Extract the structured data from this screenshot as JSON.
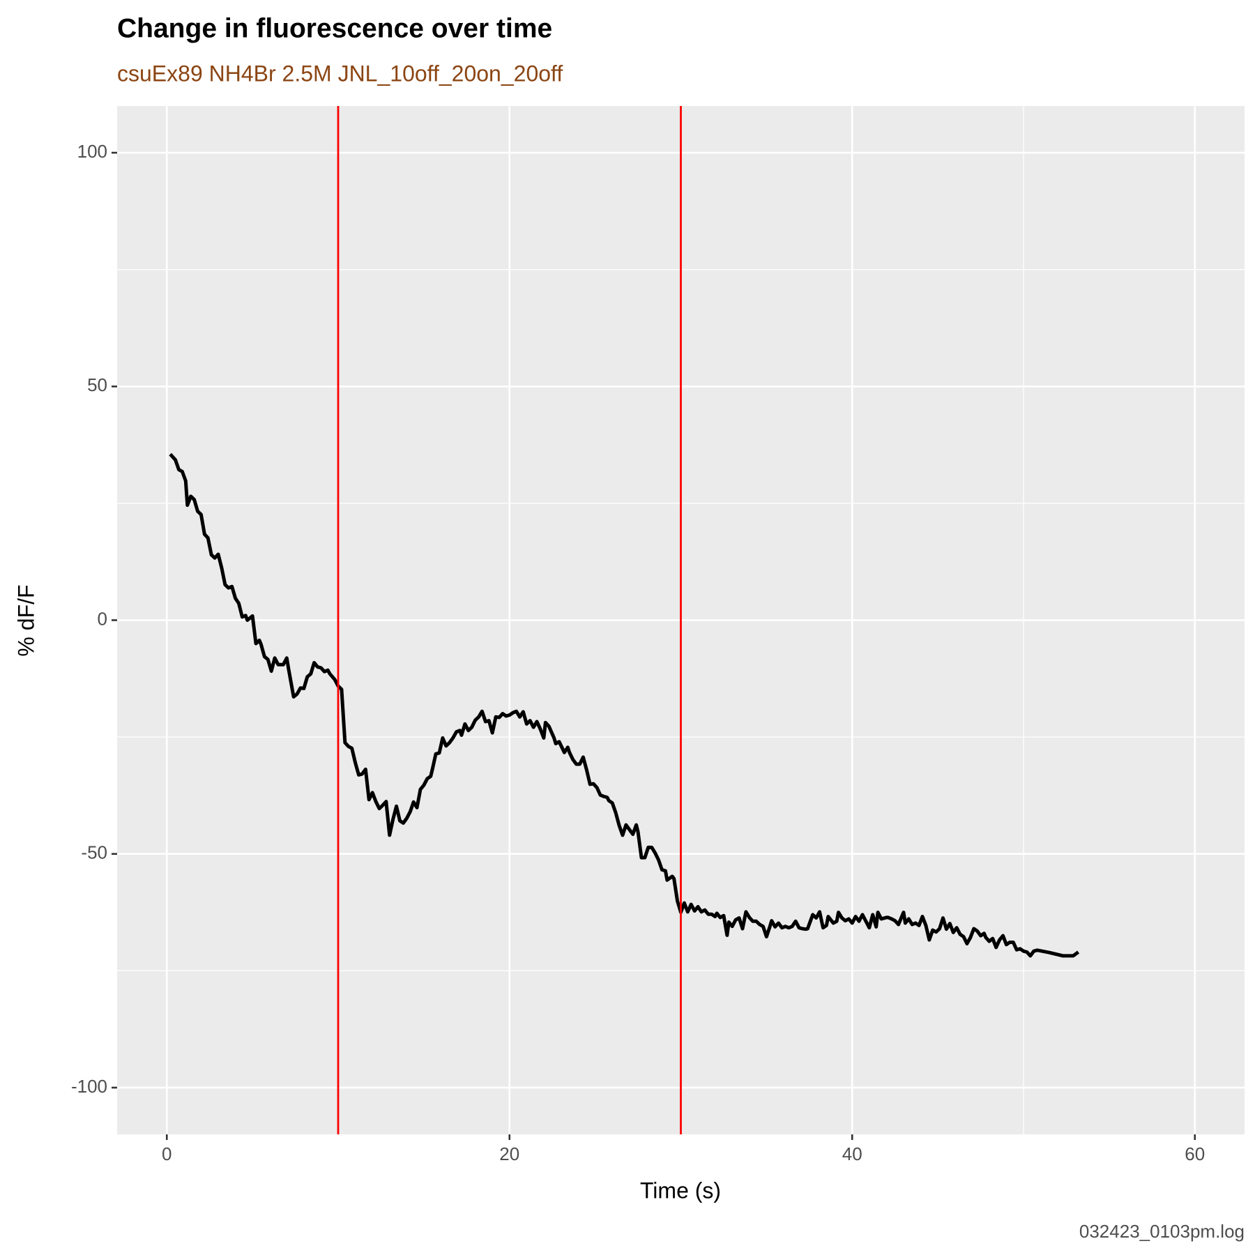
{
  "chart_data": {
    "type": "line",
    "title": "Change in fluorescence over time",
    "subtitle": "csuEx89 NH4Br 2.5M JNL_10off_20on_20off",
    "x_label": "Time (s)",
    "y_label": "% dF/F",
    "caption": "032423_0103pm.log",
    "xlim": [
      -2.9,
      62.9
    ],
    "ylim": [
      -110,
      110
    ],
    "xticks": [
      0,
      20,
      40,
      60
    ],
    "yticks": [
      -100,
      -50,
      0,
      50,
      100
    ],
    "grid": true,
    "vlines": [
      10,
      30
    ],
    "vline_color": "#ff0000",
    "x": [
      0.2,
      0.5,
      0.7,
      0.9,
      1.1,
      1.2,
      1.4,
      1.6,
      1.8,
      2.0,
      2.2,
      2.4,
      2.6,
      2.8,
      3.0,
      3.2,
      3.4,
      3.6,
      3.8,
      4.0,
      4.2,
      4.4,
      4.6,
      4.7,
      5.0,
      5.2,
      5.4,
      5.5,
      5.7,
      5.9,
      6.1,
      6.3,
      6.5,
      6.8,
      7.0,
      7.1,
      7.4,
      7.6,
      7.8,
      8.0,
      8.2,
      8.4,
      8.6,
      8.8,
      9.0,
      9.2,
      9.4,
      9.5,
      9.8,
      10.0,
      10.2,
      10.4,
      10.6,
      10.8,
      11.0,
      11.2,
      11.4,
      11.6,
      11.8,
      12.0,
      12.2,
      12.4,
      12.6,
      12.8,
      13.0,
      13.2,
      13.4,
      13.6,
      13.8,
      14.0,
      14.2,
      14.4,
      14.6,
      14.8,
      15.0,
      15.2,
      15.4,
      15.5,
      15.7,
      15.9,
      16.1,
      16.3,
      16.5,
      16.7,
      16.9,
      17.1,
      17.2,
      17.4,
      17.6,
      17.8,
      18.0,
      18.2,
      18.4,
      18.6,
      18.8,
      19.0,
      19.2,
      19.4,
      19.6,
      19.8,
      20.0,
      20.2,
      20.4,
      20.6,
      20.8,
      21.0,
      21.2,
      21.4,
      21.6,
      21.8,
      22.0,
      22.1,
      22.3,
      22.6,
      22.7,
      22.9,
      23.2,
      23.4,
      23.5,
      23.7,
      23.9,
      24.1,
      24.3,
      24.5,
      24.7,
      24.9,
      25.1,
      25.3,
      25.5,
      25.7,
      25.8,
      26.0,
      26.2,
      26.4,
      26.6,
      26.8,
      27.0,
      27.2,
      27.4,
      27.5,
      27.7,
      27.9,
      28.1,
      28.3,
      28.5,
      28.7,
      28.9,
      29.1,
      29.2,
      29.5,
      29.6,
      29.8,
      30.0,
      30.2,
      30.4,
      30.6,
      30.8,
      31.0,
      31.2,
      31.4,
      31.6,
      31.8,
      32.0,
      32.1,
      32.3,
      32.5,
      32.7,
      32.8,
      33.0,
      33.2,
      33.4,
      33.6,
      33.8,
      34.0,
      34.2,
      34.4,
      34.6,
      34.8,
      35.0,
      35.2,
      35.3,
      35.5,
      35.7,
      35.9,
      36.1,
      36.3,
      36.5,
      36.7,
      36.9,
      37.1,
      37.3,
      37.4,
      37.7,
      37.9,
      38.1,
      38.3,
      38.5,
      38.6,
      38.9,
      39.1,
      39.2,
      39.4,
      39.6,
      39.8,
      40.0,
      40.2,
      40.4,
      40.6,
      40.8,
      41.0,
      41.2,
      41.4,
      41.5,
      41.7,
      42.0,
      42.1,
      42.3,
      42.5,
      42.7,
      43.0,
      43.1,
      43.3,
      43.5,
      43.7,
      43.9,
      44.1,
      44.3,
      44.5,
      44.7,
      44.9,
      45.1,
      45.3,
      45.5,
      45.7,
      45.9,
      46.1,
      46.3,
      46.5,
      46.7,
      46.9,
      47.1,
      47.3,
      47.5,
      47.7,
      47.8,
      48.0,
      48.2,
      48.4,
      48.6,
      48.8,
      49.0,
      49.2,
      49.4,
      49.6,
      49.8,
      50.0,
      50.2,
      50.4,
      50.6,
      50.8,
      51.5,
      52.3,
      52.9,
      53.2
    ],
    "series": [
      {
        "color": "#000000",
        "values": [
          35.5,
          34.3,
          32.2,
          31.8,
          29.8,
          24.6,
          26.5,
          25.8,
          23.3,
          22.6,
          18.4,
          17.6,
          14.0,
          13.3,
          14.1,
          11.2,
          7.6,
          6.9,
          7.2,
          4.7,
          3.6,
          0.7,
          1.0,
          0,
          0.9,
          -5.0,
          -4.3,
          -5.2,
          -7.8,
          -8.4,
          -10.9,
          -8.1,
          -9.5,
          -9.5,
          -8.1,
          -10.3,
          -16.4,
          -15.8,
          -14.5,
          -14.6,
          -12.1,
          -11.5,
          -9.1,
          -10.0,
          -10.2,
          -11.0,
          -10.7,
          -11.4,
          -12.7,
          -14.1,
          -14.8,
          -26.2,
          -27.0,
          -27.4,
          -30.5,
          -33.1,
          -32.9,
          -31.9,
          -38.4,
          -36.9,
          -38.8,
          -40.3,
          -39.6,
          -38.8,
          -46.0,
          -42.6,
          -39.8,
          -42.9,
          -43.4,
          -42.4,
          -41.0,
          -38.9,
          -40.1,
          -36.2,
          -35.3,
          -33.9,
          -33.4,
          -31.9,
          -28.6,
          -28.4,
          -25.2,
          -26.9,
          -26.2,
          -25.2,
          -23.9,
          -23.6,
          -24.6,
          -22.2,
          -23.6,
          -22.9,
          -21.4,
          -20.7,
          -19.5,
          -21.7,
          -21.5,
          -24.1,
          -20.7,
          -20.8,
          -20.0,
          -20.5,
          -20.3,
          -19.8,
          -19.5,
          -20.7,
          -19.6,
          -22.2,
          -21.5,
          -22.9,
          -21.7,
          -23.3,
          -25.2,
          -21.9,
          -22.7,
          -25.2,
          -26.4,
          -26.0,
          -28.3,
          -27.2,
          -28.3,
          -29.8,
          -30.8,
          -30.8,
          -29.3,
          -32.0,
          -35.1,
          -35.0,
          -35.8,
          -37.4,
          -37.7,
          -37.9,
          -38.6,
          -39.1,
          -41.2,
          -43.9,
          -46.0,
          -43.8,
          -44.8,
          -45.8,
          -43.8,
          -45.3,
          -50.8,
          -50.8,
          -48.6,
          -48.6,
          -49.8,
          -51.3,
          -53.4,
          -53.6,
          -55.6,
          -54.8,
          -55.3,
          -60.1,
          -62.5,
          -60.5,
          -62.4,
          -60.8,
          -62.2,
          -61.3,
          -62.4,
          -62.0,
          -62.9,
          -62.9,
          -63.4,
          -62.7,
          -63.6,
          -63.2,
          -67.4,
          -64.6,
          -65.5,
          -64.1,
          -63.7,
          -66.0,
          -62.4,
          -63.6,
          -64.4,
          -64.4,
          -65.1,
          -65.5,
          -67.7,
          -65.5,
          -64.3,
          -65.6,
          -64.8,
          -65.8,
          -65.5,
          -65.8,
          -65.5,
          -64.4,
          -65.8,
          -66.0,
          -66.1,
          -66.0,
          -63.0,
          -63.7,
          -62.4,
          -65.8,
          -65.3,
          -63.4,
          -64.8,
          -64.4,
          -62.5,
          -63.7,
          -64.3,
          -63.9,
          -64.8,
          -63.4,
          -64.4,
          -63.0,
          -64.4,
          -65.8,
          -63.0,
          -65.6,
          -62.5,
          -63.9,
          -63.6,
          -63.6,
          -63.9,
          -64.3,
          -65.1,
          -62.5,
          -64.8,
          -63.9,
          -65.1,
          -64.8,
          -65.3,
          -63.4,
          -65.3,
          -68.4,
          -66.3,
          -66.7,
          -66.0,
          -63.7,
          -66.1,
          -64.9,
          -66.8,
          -65.8,
          -67.2,
          -67.7,
          -69.2,
          -67.9,
          -66.0,
          -66.5,
          -67.5,
          -67.0,
          -67.9,
          -68.7,
          -68.1,
          -70.0,
          -68.4,
          -67.5,
          -69.4,
          -68.9,
          -68.9,
          -70.5,
          -70.3,
          -70.8,
          -71.0,
          -71.8,
          -70.8,
          -70.6,
          -71.1,
          -71.8,
          -71.8,
          -71.0
        ]
      }
    ]
  }
}
